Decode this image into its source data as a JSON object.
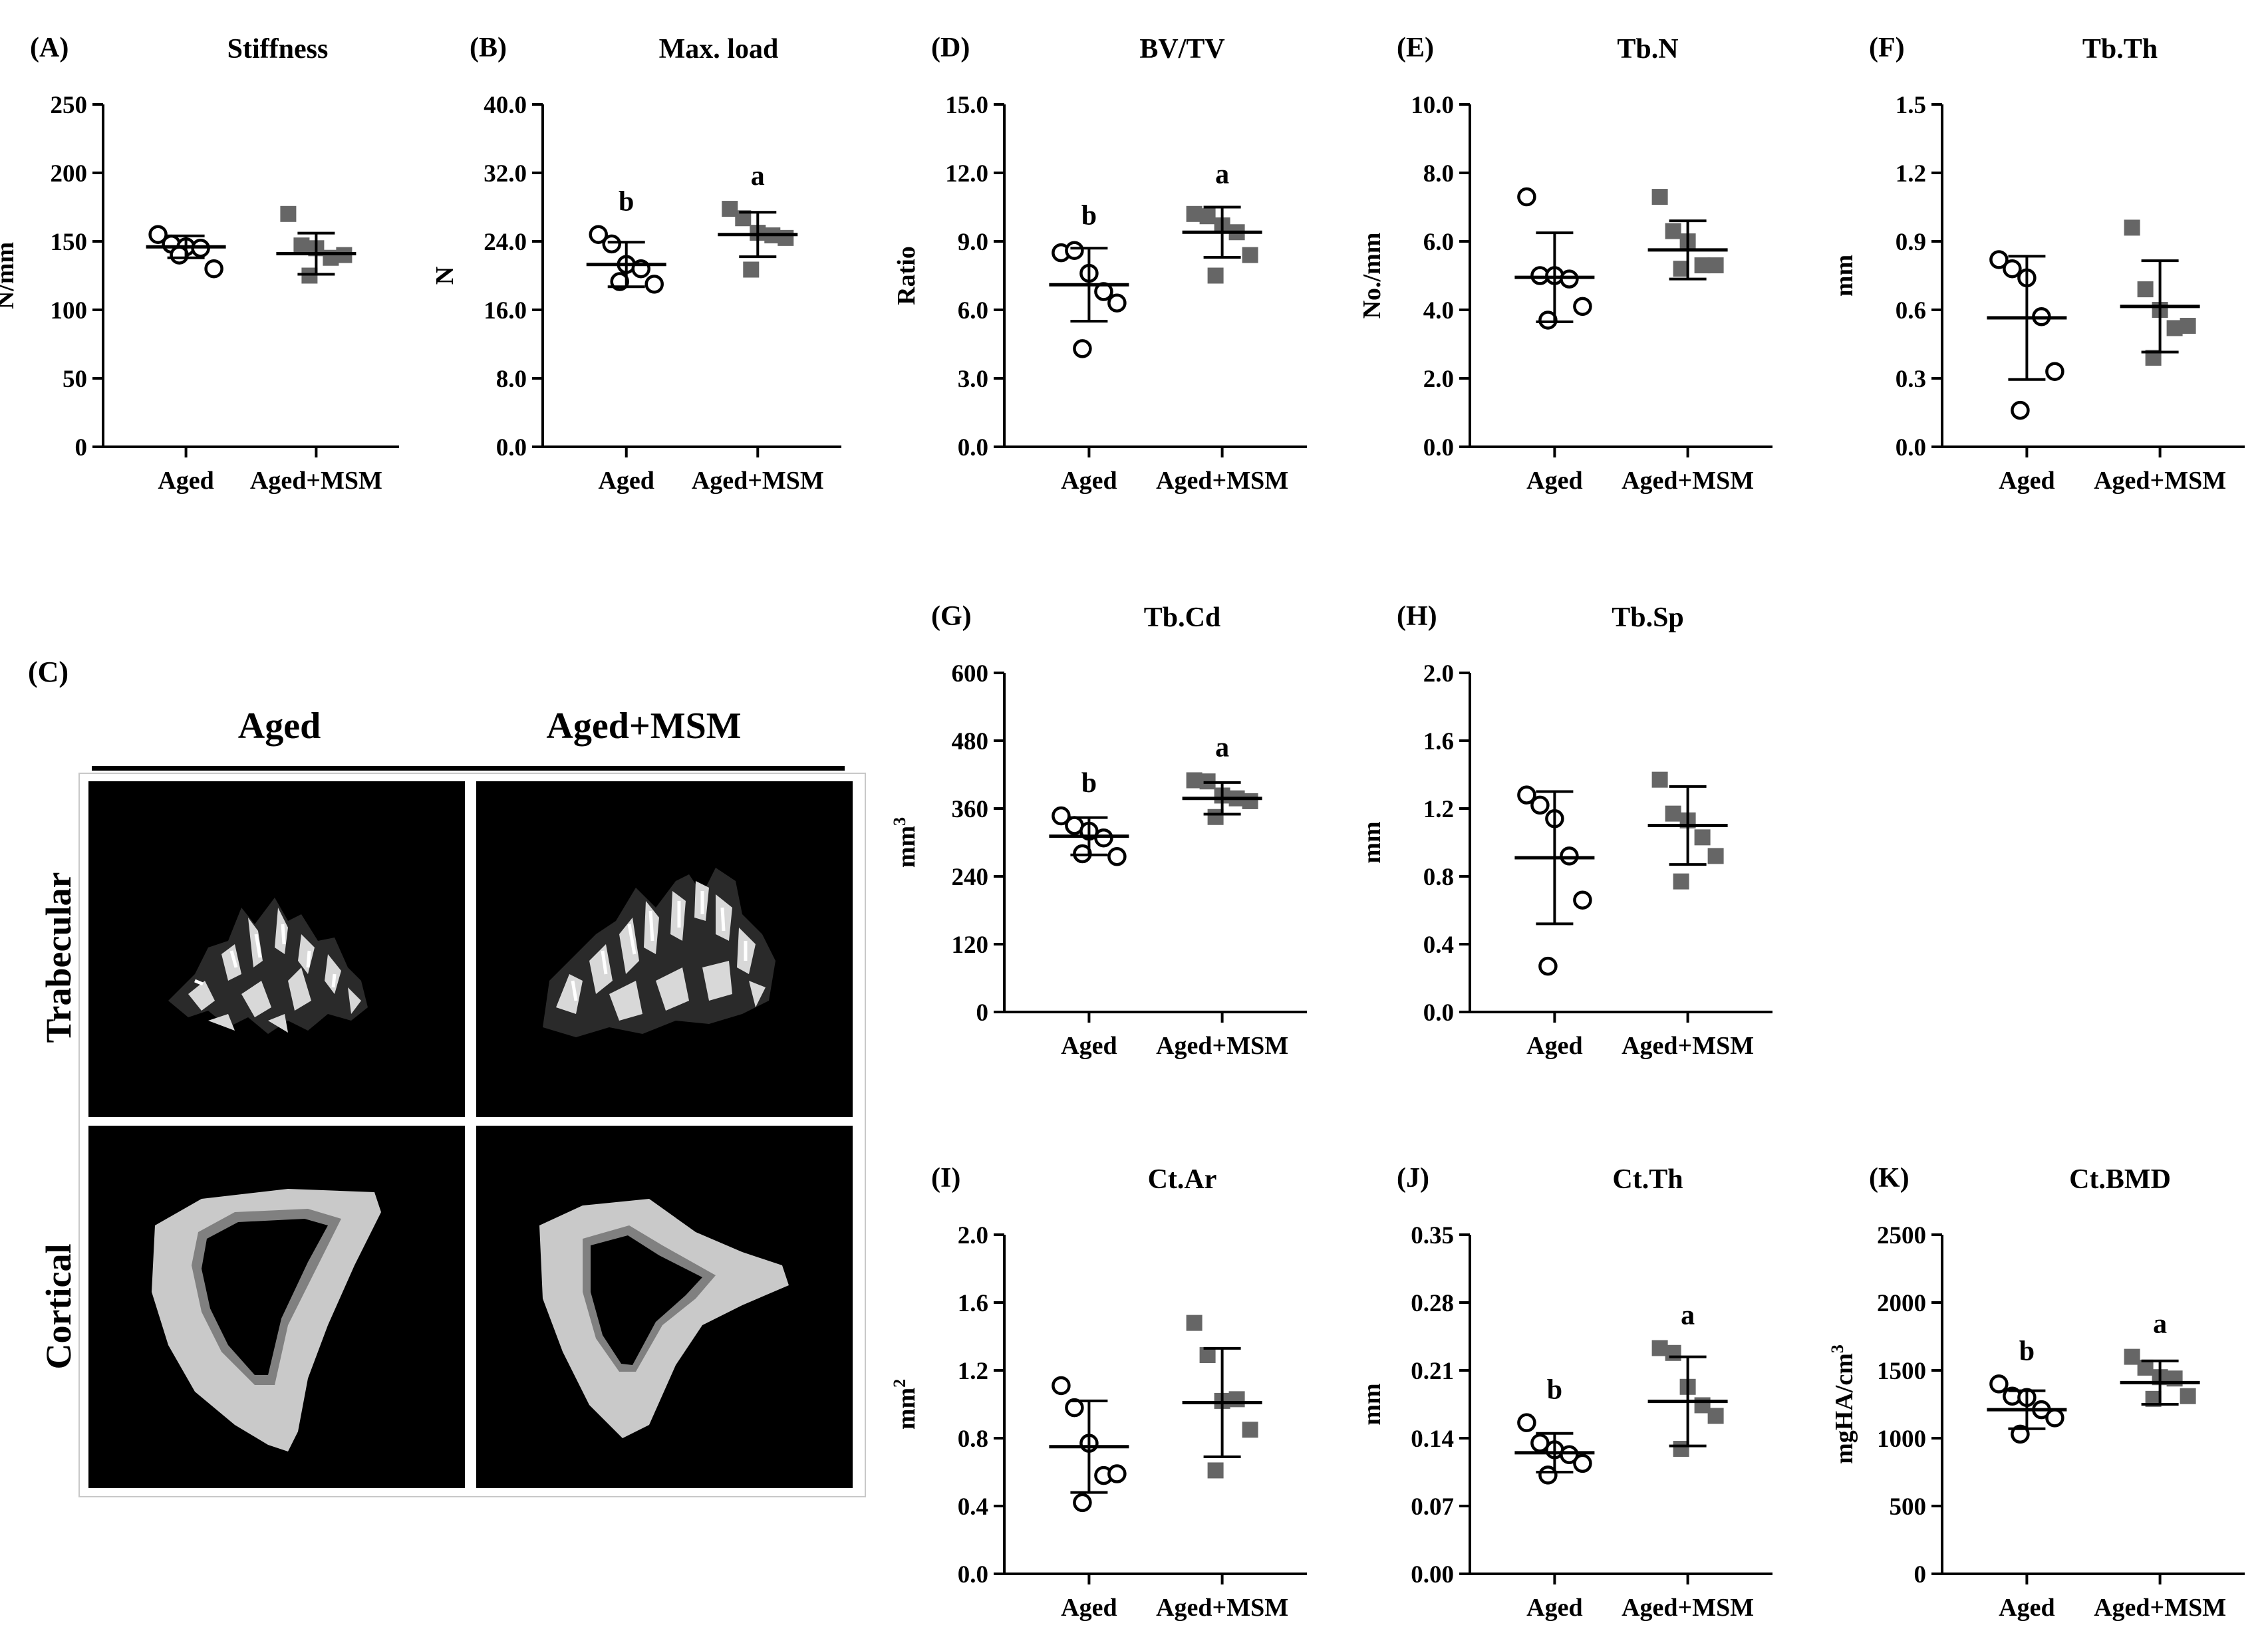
{
  "panel_c": {
    "letter": "(C)",
    "columns": [
      "Aged",
      "Aged+MSM"
    ],
    "rows": [
      "Trabecular",
      "Cortical"
    ]
  },
  "groups": [
    "Aged",
    "Aged+MSM"
  ],
  "colors": {
    "aged_marker": "#000000",
    "msm_marker": "#666666",
    "axis": "#000000",
    "image_bg": "#000000"
  },
  "chart_data": [
    {
      "id": "A",
      "letter": "(A)",
      "type": "scatter",
      "title": "Stiffness",
      "ylabel": "N/mm",
      "ylim": [
        0,
        250
      ],
      "yticks": [
        "0",
        "50",
        "100",
        "150",
        "200",
        "250"
      ],
      "categories": [
        "Aged",
        "Aged+MSM"
      ],
      "series": [
        {
          "name": "Aged",
          "marker": "open-circle",
          "points": [
            155,
            148,
            146,
            145,
            130,
            140
          ],
          "mean": 146,
          "sd": 8,
          "letter": ""
        },
        {
          "name": "Aged+MSM",
          "marker": "filled-square",
          "points": [
            170,
            147,
            145,
            138,
            140,
            125
          ],
          "mean": 141,
          "sd": 15,
          "letter": ""
        }
      ]
    },
    {
      "id": "B",
      "letter": "(B)",
      "type": "scatter",
      "title": "Max. load",
      "ylabel": "N",
      "ylim": [
        0,
        40
      ],
      "yticks": [
        "0.0",
        "8.0",
        "16.0",
        "24.0",
        "32.0",
        "40.0"
      ],
      "categories": [
        "Aged",
        "Aged+MSM"
      ],
      "series": [
        {
          "name": "Aged",
          "marker": "open-circle",
          "points": [
            24.8,
            23.7,
            21.3,
            20.8,
            19.0,
            19.3
          ],
          "mean": 21.3,
          "sd": 2.6,
          "letter": "b"
        },
        {
          "name": "Aged+MSM",
          "marker": "filled-square",
          "points": [
            27.8,
            26.7,
            25.0,
            24.7,
            24.4,
            20.7
          ],
          "mean": 24.8,
          "sd": 2.6,
          "letter": "a"
        }
      ]
    },
    {
      "id": "D",
      "letter": "(D)",
      "type": "scatter",
      "title": "BV/TV",
      "ylabel": "Ratio",
      "ylim": [
        0,
        15
      ],
      "yticks": [
        "0.0",
        "3.0",
        "6.0",
        "9.0",
        "12.0",
        "15.0"
      ],
      "categories": [
        "Aged",
        "Aged+MSM"
      ],
      "series": [
        {
          "name": "Aged",
          "marker": "open-circle",
          "points": [
            8.5,
            8.6,
            7.6,
            6.8,
            6.3,
            4.3
          ],
          "mean": 7.1,
          "sd": 1.6,
          "letter": "b"
        },
        {
          "name": "Aged+MSM",
          "marker": "filled-square",
          "points": [
            10.2,
            10.1,
            9.7,
            9.4,
            8.4,
            7.5
          ],
          "mean": 9.4,
          "sd": 1.1,
          "letter": "a"
        }
      ]
    },
    {
      "id": "E",
      "letter": "(E)",
      "type": "scatter",
      "title": "Tb.N",
      "ylabel": "No./mm",
      "ylim": [
        0,
        10
      ],
      "yticks": [
        "0.0",
        "2.0",
        "4.0",
        "6.0",
        "8.0",
        "10.0"
      ],
      "categories": [
        "Aged",
        "Aged+MSM"
      ],
      "series": [
        {
          "name": "Aged",
          "marker": "open-circle",
          "points": [
            7.3,
            5.0,
            5.0,
            4.9,
            4.1,
            3.7
          ],
          "mean": 4.95,
          "sd": 1.3,
          "letter": ""
        },
        {
          "name": "Aged+MSM",
          "marker": "filled-square",
          "points": [
            7.3,
            6.3,
            6.0,
            5.3,
            5.3,
            5.2
          ],
          "mean": 5.75,
          "sd": 0.85,
          "letter": ""
        }
      ]
    },
    {
      "id": "F",
      "letter": "(F)",
      "type": "scatter",
      "title": "Tb.Th",
      "ylabel": "mm",
      "ylim": [
        0,
        1.5
      ],
      "yticks": [
        "0.0",
        "0.3",
        "0.6",
        "0.9",
        "1.2",
        "1.5"
      ],
      "categories": [
        "Aged",
        "Aged+MSM"
      ],
      "series": [
        {
          "name": "Aged",
          "marker": "open-circle",
          "points": [
            0.82,
            0.78,
            0.74,
            0.57,
            0.33,
            0.16
          ],
          "mean": 0.565,
          "sd": 0.27,
          "letter": ""
        },
        {
          "name": "Aged+MSM",
          "marker": "filled-square",
          "points": [
            0.96,
            0.69,
            0.6,
            0.52,
            0.53,
            0.39
          ],
          "mean": 0.615,
          "sd": 0.2,
          "letter": ""
        }
      ]
    },
    {
      "id": "G",
      "letter": "(G)",
      "type": "scatter",
      "title": "Tb.Cd",
      "ylabel": "mm3",
      "ylabel_base": "mm",
      "ylabel_sup": "3",
      "ylim": [
        0,
        600
      ],
      "yticks": [
        "0",
        "120",
        "240",
        "360",
        "480",
        "600"
      ],
      "categories": [
        "Aged",
        "Aged+MSM"
      ],
      "series": [
        {
          "name": "Aged",
          "marker": "open-circle",
          "points": [
            347,
            330,
            320,
            308,
            275,
            280
          ],
          "mean": 311,
          "sd": 33,
          "letter": "b"
        },
        {
          "name": "Aged+MSM",
          "marker": "filled-square",
          "points": [
            410,
            408,
            383,
            378,
            373,
            345
          ],
          "mean": 378,
          "sd": 28,
          "letter": "a"
        }
      ]
    },
    {
      "id": "H",
      "letter": "(H)",
      "type": "scatter",
      "title": "Tb.Sp",
      "ylabel": "mm",
      "ylim": [
        0,
        2
      ],
      "yticks": [
        "0.0",
        "0.4",
        "0.8",
        "1.2",
        "1.6",
        "2.0"
      ],
      "categories": [
        "Aged",
        "Aged+MSM"
      ],
      "series": [
        {
          "name": "Aged",
          "marker": "open-circle",
          "points": [
            1.28,
            1.22,
            1.14,
            0.92,
            0.66,
            0.27
          ],
          "mean": 0.91,
          "sd": 0.39,
          "letter": ""
        },
        {
          "name": "Aged+MSM",
          "marker": "filled-square",
          "points": [
            1.37,
            1.17,
            1.13,
            1.03,
            0.92,
            0.77
          ],
          "mean": 1.1,
          "sd": 0.23,
          "letter": ""
        }
      ]
    },
    {
      "id": "I",
      "letter": "(I)",
      "type": "scatter",
      "title": "Ct.Ar",
      "ylabel": "mm2",
      "ylabel_base": "mm",
      "ylabel_sup": "2",
      "ylim": [
        0,
        2
      ],
      "yticks": [
        "0.0",
        "0.4",
        "0.8",
        "1.2",
        "1.6",
        "2.0"
      ],
      "categories": [
        "Aged",
        "Aged+MSM"
      ],
      "series": [
        {
          "name": "Aged",
          "marker": "open-circle",
          "points": [
            1.11,
            0.98,
            0.77,
            0.58,
            0.59,
            0.42
          ],
          "mean": 0.75,
          "sd": 0.27,
          "letter": ""
        },
        {
          "name": "Aged+MSM",
          "marker": "filled-square",
          "points": [
            1.48,
            1.29,
            1.02,
            1.03,
            0.85,
            0.61
          ],
          "mean": 1.01,
          "sd": 0.32,
          "letter": ""
        }
      ]
    },
    {
      "id": "J",
      "letter": "(J)",
      "type": "scatter",
      "title": "Ct.Th",
      "ylabel": "mm",
      "ylim": [
        0,
        0.35
      ],
      "yticks": [
        "0.00",
        "0.07",
        "0.14",
        "0.21",
        "0.28",
        "0.35"
      ],
      "categories": [
        "Aged",
        "Aged+MSM"
      ],
      "series": [
        {
          "name": "Aged",
          "marker": "open-circle",
          "points": [
            0.156,
            0.135,
            0.128,
            0.123,
            0.114,
            0.102
          ],
          "mean": 0.125,
          "sd": 0.02,
          "letter": "b"
        },
        {
          "name": "Aged+MSM",
          "marker": "filled-square",
          "points": [
            0.233,
            0.228,
            0.193,
            0.174,
            0.163,
            0.129
          ],
          "mean": 0.178,
          "sd": 0.046,
          "letter": "a"
        }
      ]
    },
    {
      "id": "K",
      "letter": "(K)",
      "type": "scatter",
      "title": "Ct.BMD",
      "ylabel": "mgHA/cm3",
      "ylabel_base": "mgHA/cm",
      "ylabel_sup": "3",
      "ylim": [
        0,
        2500
      ],
      "yticks": [
        "0",
        "500",
        "1000",
        "1500",
        "2000",
        "2500"
      ],
      "categories": [
        "Aged",
        "Aged+MSM"
      ],
      "series": [
        {
          "name": "Aged",
          "marker": "open-circle",
          "points": [
            1400,
            1310,
            1300,
            1210,
            1150,
            1030
          ],
          "mean": 1210,
          "sd": 140,
          "letter": "b"
        },
        {
          "name": "Aged+MSM",
          "marker": "filled-square",
          "points": [
            1600,
            1520,
            1450,
            1440,
            1310,
            1290
          ],
          "mean": 1410,
          "sd": 160,
          "letter": "a"
        }
      ]
    }
  ]
}
